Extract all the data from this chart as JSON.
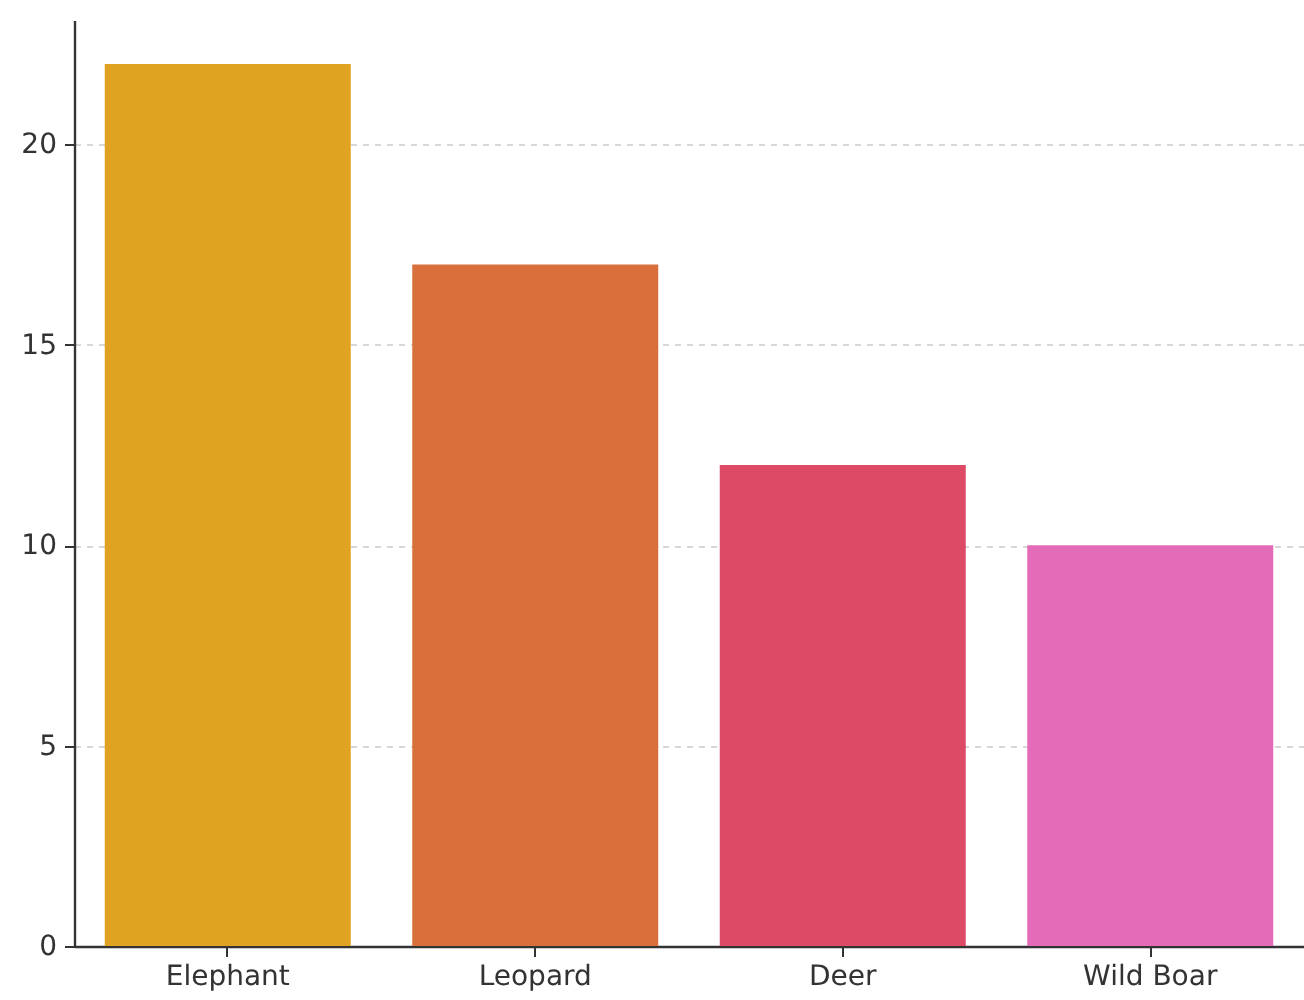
{
  "chart_data": {
    "type": "bar",
    "categories": [
      "Elephant",
      "Leopard",
      "Deer",
      "Wild Boar"
    ],
    "values": [
      22,
      17,
      12,
      10
    ],
    "colors": [
      "#dfa221",
      "#d9703c",
      "#dc4a66",
      "#e36bb8"
    ],
    "ylim": [
      0,
      23.1
    ],
    "yticks": [
      0,
      5,
      10,
      15,
      20
    ],
    "grid": "y"
  }
}
